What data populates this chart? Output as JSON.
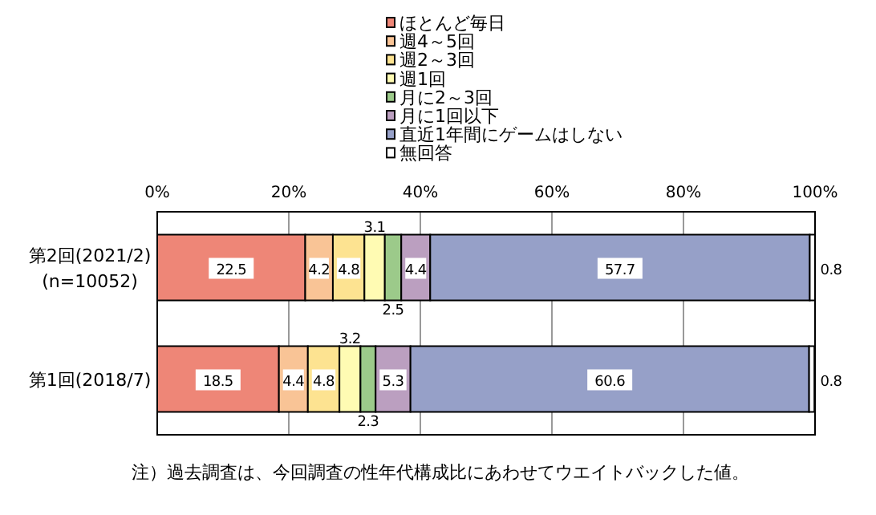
{
  "chart_data": {
    "type": "bar",
    "orientation": "horizontal",
    "stacked": true,
    "data_labels": true,
    "legend": "top",
    "grid": "x",
    "categories": [
      "第2回(2021/2)\n(n=10052)",
      "第1回(2018/7)"
    ],
    "xlim": [
      0,
      100
    ],
    "xticks": [
      {
        "value": 0,
        "label": "0%"
      },
      {
        "value": 20,
        "label": "20%"
      },
      {
        "value": 40,
        "label": "40%"
      },
      {
        "value": 60,
        "label": "60%"
      },
      {
        "value": 80,
        "label": "80%"
      },
      {
        "value": 100,
        "label": "100%"
      }
    ],
    "series": [
      {
        "name": "ほとんど毎日",
        "color": "#ee8677",
        "values": [
          22.5,
          18.5
        ]
      },
      {
        "name": "週4～5回",
        "color": "#f9c496",
        "values": [
          4.2,
          4.4
        ]
      },
      {
        "name": "週2～3回",
        "color": "#fde391",
        "values": [
          4.8,
          4.8
        ]
      },
      {
        "name": "週1回",
        "color": "#fffbb3",
        "values": [
          3.1,
          3.2
        ]
      },
      {
        "name": "月に2～3回",
        "color": "#9cca8a",
        "values": [
          2.5,
          2.3
        ]
      },
      {
        "name": "月に1回以下",
        "color": "#bb9fc0",
        "values": [
          4.4,
          5.3
        ]
      },
      {
        "name": "直近1年間にゲームはしない",
        "color": "#96a0c8",
        "values": [
          57.7,
          60.6
        ]
      },
      {
        "name": "無回答",
        "color": "#ffffff",
        "values": [
          0.8,
          0.8
        ]
      }
    ],
    "annotations": [
      "注）過去調査は、今回調査の性年代構成比にあわせてウエイトバックした値。"
    ]
  }
}
